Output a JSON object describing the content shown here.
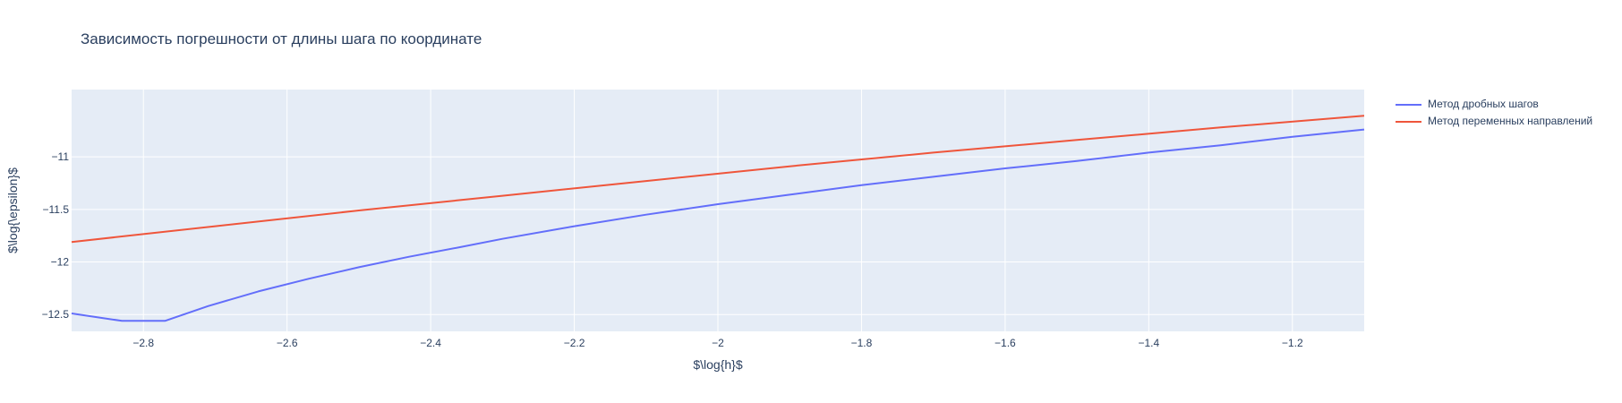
{
  "chart_data": {
    "type": "line",
    "title": "Зависимость погрешности от длины шага по координате",
    "xlabel": "$\\log{h}$",
    "ylabel": "$\\log{\\epsilon}$",
    "xlim": [
      -2.9,
      -1.1
    ],
    "ylim": [
      -12.66,
      -10.36
    ],
    "xticks": [
      -2.8,
      -2.6,
      -2.4,
      -2.2,
      -2,
      -1.8,
      -1.6,
      -1.4,
      -1.2
    ],
    "xtick_labels": [
      "−2.8",
      "−2.6",
      "−2.4",
      "−2.2",
      "−2",
      "−1.8",
      "−1.6",
      "−1.4",
      "−1.2"
    ],
    "yticks": [
      -11,
      -11.5,
      -12,
      -12.5
    ],
    "ytick_labels": [
      "−11",
      "−11.5",
      "−12",
      "−12.5"
    ],
    "grid": true,
    "legend_position": "right",
    "plot_bgcolor": "#e5ecf6",
    "series": [
      {
        "name": "Метод дробных шагов",
        "color": "#636efa",
        "x": [
          -2.9,
          -2.83,
          -2.77,
          -2.71,
          -2.64,
          -2.57,
          -2.5,
          -2.43,
          -2.36,
          -2.3,
          -2.2,
          -2.1,
          -2.0,
          -1.9,
          -1.8,
          -1.7,
          -1.6,
          -1.5,
          -1.4,
          -1.3,
          -1.2,
          -1.1
        ],
        "y": [
          -12.49,
          -12.56,
          -12.56,
          -12.42,
          -12.28,
          -12.16,
          -12.05,
          -11.95,
          -11.86,
          -11.78,
          -11.66,
          -11.55,
          -11.45,
          -11.36,
          -11.27,
          -11.19,
          -11.11,
          -11.04,
          -10.96,
          -10.89,
          -10.81,
          -10.74
        ]
      },
      {
        "name": "Метод переменных направлений",
        "color": "#ef553b",
        "x": [
          -2.9,
          -2.7,
          -2.5,
          -2.3,
          -2.1,
          -1.9,
          -1.7,
          -1.5,
          -1.3,
          -1.1
        ],
        "y": [
          -11.81,
          -11.66,
          -11.51,
          -11.37,
          -11.23,
          -11.09,
          -10.96,
          -10.84,
          -10.72,
          -10.61
        ]
      }
    ]
  }
}
